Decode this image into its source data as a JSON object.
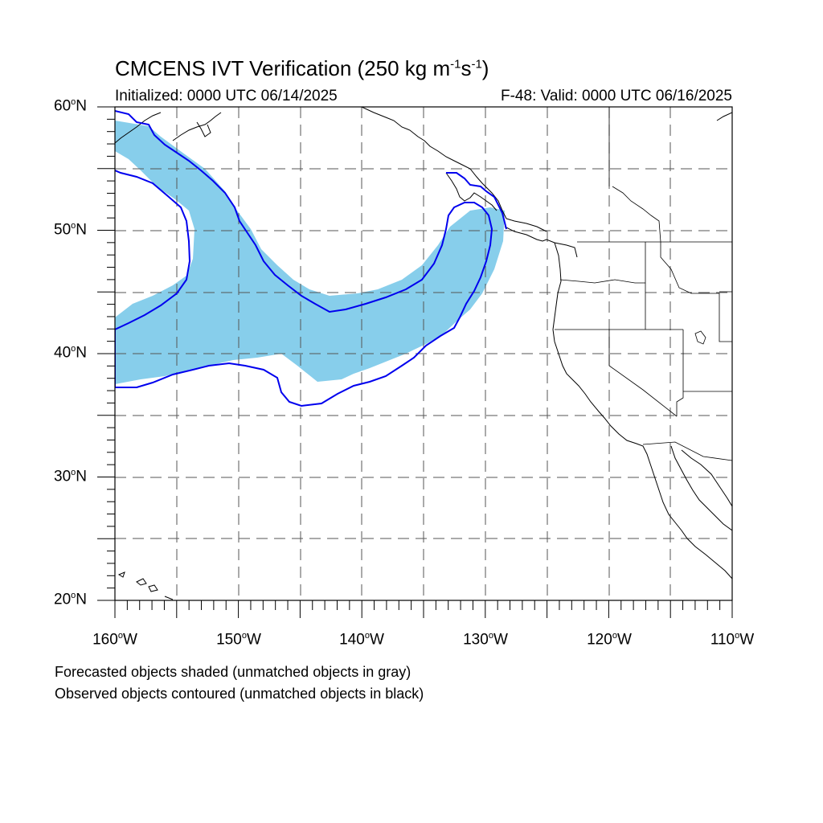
{
  "title": {
    "prefix": "CMCENS IVT Verification (250 kg m",
    "exp1": "-1",
    "mid": "s",
    "exp2": "-1",
    "suffix": ")"
  },
  "subtitle_left": "Initialized: 0000 UTC 06/14/2025",
  "subtitle_right": "F-48: Valid: 0000 UTC 06/16/2025",
  "lat_labels": [
    {
      "num": "60",
      "deg": "o",
      "hem": "N"
    },
    {
      "num": "50",
      "deg": "o",
      "hem": "N"
    },
    {
      "num": "40",
      "deg": "o",
      "hem": "N"
    },
    {
      "num": "30",
      "deg": "o",
      "hem": "N"
    },
    {
      "num": "20",
      "deg": "o",
      "hem": "N"
    }
  ],
  "lon_labels": [
    {
      "num": "160",
      "deg": "o",
      "hem": "W"
    },
    {
      "num": "150",
      "deg": "o",
      "hem": "W"
    },
    {
      "num": "140",
      "deg": "o",
      "hem": "W"
    },
    {
      "num": "130",
      "deg": "o",
      "hem": "W"
    },
    {
      "num": "120",
      "deg": "o",
      "hem": "W"
    },
    {
      "num": "110",
      "deg": "o",
      "hem": "W"
    }
  ],
  "notes": [
    "Forecasted objects shaded (unmatched objects in gray)",
    "Observed objects contoured (unmatched objects in black)"
  ],
  "colors": {
    "forecast_fill": "#87ceeb",
    "observed_contour": "#0000ee",
    "grid": "#555555",
    "coast": "#000000"
  }
}
